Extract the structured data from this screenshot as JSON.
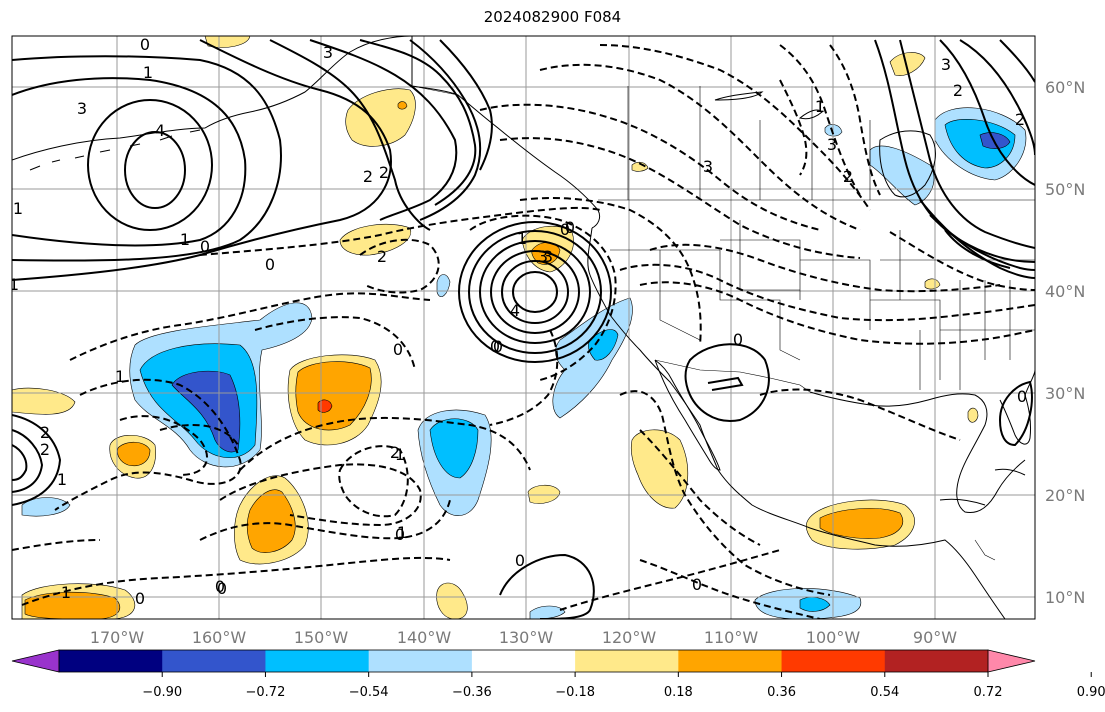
{
  "title": "2024082900 F084",
  "lon_labels": [
    "170°W",
    "160°W",
    "150°W",
    "140°W",
    "130°W",
    "120°W",
    "110°W",
    "100°W",
    "90°W"
  ],
  "lat_labels": [
    "60°N",
    "50°N",
    "40°N",
    "30°N",
    "20°N",
    "10°N"
  ],
  "colorbar": {
    "colors": [
      "#9933cc",
      "#000080",
      "#3355cc",
      "#00bfff",
      "#aee0ff",
      "#ffffff",
      "#ffe98a",
      "#ffa500",
      "#ff3a00",
      "#b22222",
      "#ff88aa"
    ],
    "tick_labels": [
      "−0.90",
      "−0.72",
      "−0.54",
      "−0.36",
      "−0.18",
      "0.18",
      "0.36",
      "0.54",
      "0.72",
      "0.90"
    ]
  },
  "contour_labels": {
    "pos": [
      "0",
      "1",
      "3",
      "4",
      "3",
      "2",
      "2",
      "1",
      "0",
      "3",
      "0",
      "4",
      "0",
      "1",
      "0",
      "0",
      "1",
      "2",
      "3",
      "2",
      "0",
      "0",
      "0",
      "1"
    ],
    "neg": [
      "0",
      "1",
      "2",
      "1",
      "2",
      "0",
      "1",
      "2",
      "1",
      "0",
      "0",
      "2",
      "3",
      "3",
      "1",
      "0",
      "0",
      "2",
      "3",
      "1",
      "1",
      "0"
    ]
  }
}
